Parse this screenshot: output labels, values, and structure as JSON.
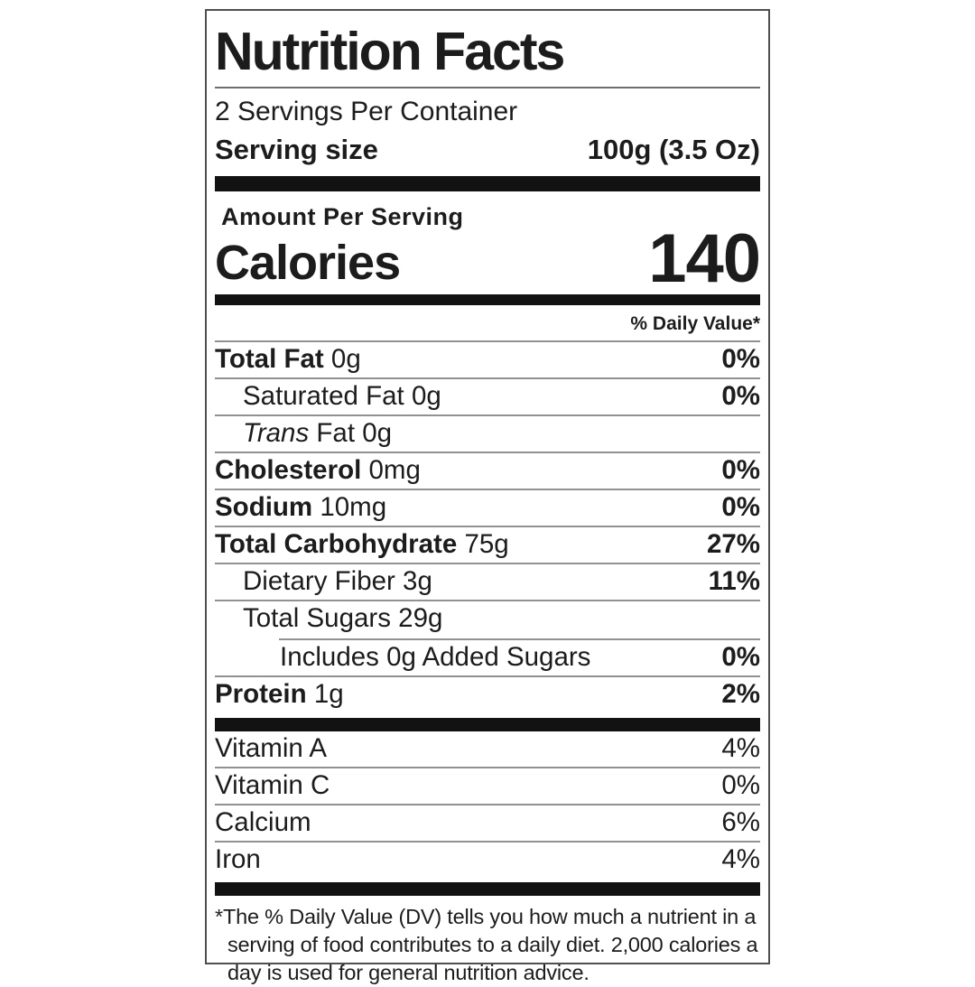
{
  "label": {
    "title": "Nutrition Facts",
    "servings_per_container": "2 Servings Per Container",
    "serving_size": {
      "label": "Serving size",
      "value": "100g (3.5 Oz)"
    },
    "amount_per_serving": "Amount Per Serving",
    "calories": {
      "label": "Calories",
      "value": "140"
    },
    "daily_value_header": "% Daily Value*",
    "nutrients": [
      {
        "bold": "Total Fat",
        "rest": " 0g",
        "dv": "0%"
      },
      {
        "rest": "Saturated Fat 0g",
        "dv": "0%"
      },
      {
        "italic": "Trans",
        "rest": " Fat 0g",
        "dv": ""
      },
      {
        "bold": "Cholesterol",
        "rest": " 0mg",
        "dv": "0%"
      },
      {
        "bold": "Sodium",
        "rest": " 10mg",
        "dv": "0%"
      },
      {
        "bold": "Total Carbohydrate",
        "rest": " 75g",
        "dv": "27%"
      },
      {
        "rest": "Dietary Fiber 3g",
        "dv": "11%"
      },
      {
        "rest": "Total Sugars 29g",
        "dv": ""
      },
      {
        "rest": "Includes 0g Added Sugars",
        "dv": "0%"
      },
      {
        "bold": "Protein",
        "rest": " 1g",
        "dv": "2%"
      }
    ],
    "micronutrients": [
      {
        "name": "Vitamin A",
        "dv": "4%"
      },
      {
        "name": "Vitamin C",
        "dv": "0%"
      },
      {
        "name": "Calcium",
        "dv": "6%"
      },
      {
        "name": "Iron",
        "dv": "4%"
      }
    ],
    "footnote": {
      "asterisk": "*",
      "text": "The % Daily Value (DV) tells you how much a nutrient in a serving of food contributes to a daily diet. 2,000 calories a day is used for general nutrition advice."
    }
  }
}
